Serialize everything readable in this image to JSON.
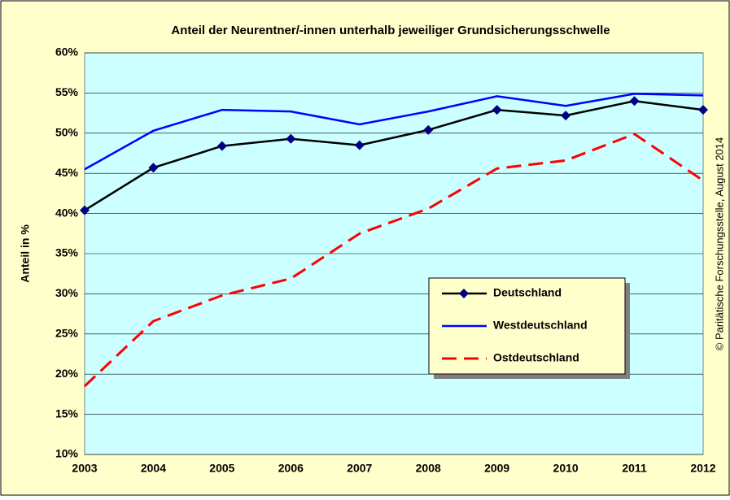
{
  "chart_data": {
    "type": "line",
    "title": "Anteil der Neurentner/-innen unterhalb jeweiliger Grundsicherungsschwelle",
    "y_label": "Anteil in %",
    "annotation": "© Paritätische Forschungsstelle, August 2014",
    "categories": [
      "2003",
      "2004",
      "2005",
      "2006",
      "2007",
      "2008",
      "2009",
      "2010",
      "2011",
      "2012"
    ],
    "series": [
      {
        "name": "Deutschland",
        "color": "#000000",
        "dash": false,
        "marker": true,
        "values": [
          40.4,
          45.7,
          48.4,
          49.3,
          48.5,
          50.4,
          52.9,
          52.2,
          54.0,
          52.9
        ]
      },
      {
        "name": "Westdeutschland",
        "color": "#0000ff",
        "dash": false,
        "marker": false,
        "values": [
          45.5,
          50.3,
          52.9,
          52.7,
          51.1,
          52.7,
          54.6,
          53.4,
          54.9,
          54.7
        ]
      },
      {
        "name": "Ostdeutschland",
        "color": "#ff0000",
        "dash": true,
        "marker": false,
        "values": [
          18.5,
          26.6,
          29.8,
          31.9,
          37.5,
          40.6,
          45.6,
          46.6,
          49.9,
          44.1
        ]
      }
    ],
    "ylim": [
      10,
      60
    ],
    "yticks": [
      {
        "value": 10,
        "label": "10%"
      },
      {
        "value": 15,
        "label": "15%"
      },
      {
        "value": 20,
        "label": "20%"
      },
      {
        "value": 25,
        "label": "25%"
      },
      {
        "value": 30,
        "label": "30%"
      },
      {
        "value": 35,
        "label": "35%"
      },
      {
        "value": 40,
        "label": "40%"
      },
      {
        "value": 45,
        "label": "45%"
      },
      {
        "value": 50,
        "label": "50%"
      },
      {
        "value": 55,
        "label": "55%"
      },
      {
        "value": 60,
        "label": "60%"
      }
    ],
    "grid": true,
    "legend": "lower-right"
  }
}
